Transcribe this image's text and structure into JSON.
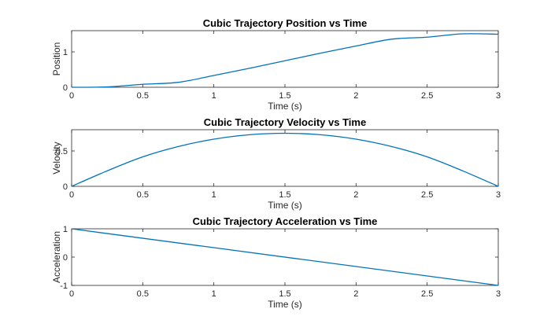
{
  "chart_data": [
    {
      "type": "line",
      "title": "Cubic Trajectory Position vs Time",
      "xlabel": "Time (s)",
      "ylabel": "Position",
      "xlim": [
        0,
        3
      ],
      "ylim": [
        0,
        1.6
      ],
      "xticks": [
        0,
        0.5,
        1,
        1.5,
        2,
        2.5,
        3
      ],
      "xtick_labels": [
        "0",
        "0.5",
        "1",
        "1.5",
        "2",
        "2.5",
        "3"
      ],
      "yticks": [
        0,
        1
      ],
      "ytick_labels": [
        "0",
        "1"
      ],
      "grid": false,
      "series": [
        {
          "color": "#0072bd",
          "x": [
            0,
            0.25,
            0.5,
            0.75,
            1,
            1.25,
            1.5,
            1.75,
            2,
            2.25,
            2.5,
            2.75,
            3
          ],
          "y": [
            0,
            0.0104,
            0.0833,
            0.1406,
            0.3333,
            0.5365,
            0.75,
            0.9635,
            1.1667,
            1.3594,
            1.4167,
            1.5104,
            1.5
          ]
        }
      ]
    },
    {
      "type": "line",
      "title": "Cubic Trajectory Velocity vs Time",
      "xlabel": "Time (s)",
      "ylabel": "Velocity",
      "xlim": [
        0,
        3
      ],
      "ylim": [
        0,
        0.8
      ],
      "xticks": [
        0,
        0.5,
        1,
        1.5,
        2,
        2.5,
        3
      ],
      "xtick_labels": [
        "0",
        "0.5",
        "1",
        "1.5",
        "2",
        "2.5",
        "3"
      ],
      "yticks": [
        0,
        0.5
      ],
      "ytick_labels": [
        "0",
        "0.5"
      ],
      "grid": false,
      "series": [
        {
          "color": "#0072bd",
          "x": [
            0,
            0.25,
            0.5,
            0.75,
            1,
            1.25,
            1.5,
            1.75,
            2,
            2.25,
            2.5,
            2.75,
            3
          ],
          "y": [
            0,
            0.2188,
            0.4167,
            0.5625,
            0.6667,
            0.7292,
            0.75,
            0.7292,
            0.6667,
            0.5625,
            0.4167,
            0.2188,
            0
          ]
        }
      ]
    },
    {
      "type": "line",
      "title": "Cubic Trajectory Acceleration vs Time",
      "xlabel": "Time (s)",
      "ylabel": "Acceleration",
      "xlim": [
        0,
        3
      ],
      "ylim": [
        -1,
        1
      ],
      "xticks": [
        0,
        0.5,
        1,
        1.5,
        2,
        2.5,
        3
      ],
      "xtick_labels": [
        "0",
        "0.5",
        "1",
        "1.5",
        "2",
        "2.5",
        "3"
      ],
      "yticks": [
        -1,
        0,
        1
      ],
      "ytick_labels": [
        "-1",
        "0",
        "1"
      ],
      "grid": false,
      "series": [
        {
          "color": "#0072bd",
          "x": [
            0,
            3
          ],
          "y": [
            1,
            -1
          ]
        }
      ]
    }
  ]
}
